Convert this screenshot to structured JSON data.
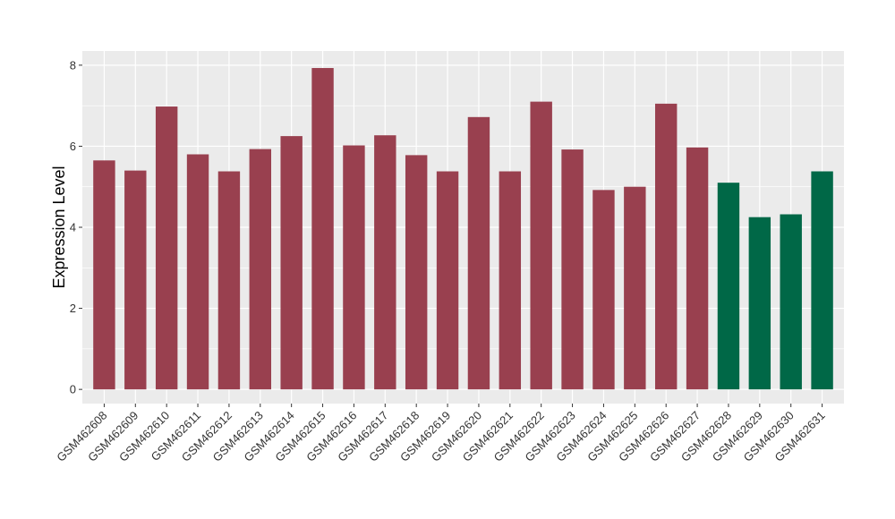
{
  "chart_data": {
    "type": "bar",
    "ylabel": "Expression Level",
    "xlabel": "",
    "ylim": [
      -0.35,
      8.35
    ],
    "yticks": [
      0,
      2,
      4,
      6,
      8
    ],
    "grid": true,
    "categories": [
      "GSM462608",
      "GSM462609",
      "GSM462610",
      "GSM462611",
      "GSM462612",
      "GSM462613",
      "GSM462614",
      "GSM462615",
      "GSM462616",
      "GSM462617",
      "GSM462618",
      "GSM462619",
      "GSM462620",
      "GSM462621",
      "GSM462622",
      "GSM462623",
      "GSM462624",
      "GSM462625",
      "GSM462626",
      "GSM462627",
      "GSM462628",
      "GSM462629",
      "GSM462630",
      "GSM462631"
    ],
    "values": [
      5.65,
      5.4,
      6.98,
      5.8,
      5.38,
      5.93,
      6.25,
      7.93,
      6.02,
      6.27,
      5.78,
      5.38,
      6.72,
      5.38,
      7.1,
      5.92,
      4.92,
      5.0,
      7.05,
      5.97,
      5.1,
      4.25,
      4.32,
      5.38
    ],
    "groups": [
      "a",
      "a",
      "a",
      "a",
      "a",
      "a",
      "a",
      "a",
      "a",
      "a",
      "a",
      "a",
      "a",
      "a",
      "a",
      "a",
      "a",
      "a",
      "a",
      "a",
      "b",
      "b",
      "b",
      "b"
    ],
    "colors": {
      "a": "#99404f",
      "b": "#006847"
    },
    "panel_background": "#ebebeb",
    "grid_color": "#ffffff"
  }
}
